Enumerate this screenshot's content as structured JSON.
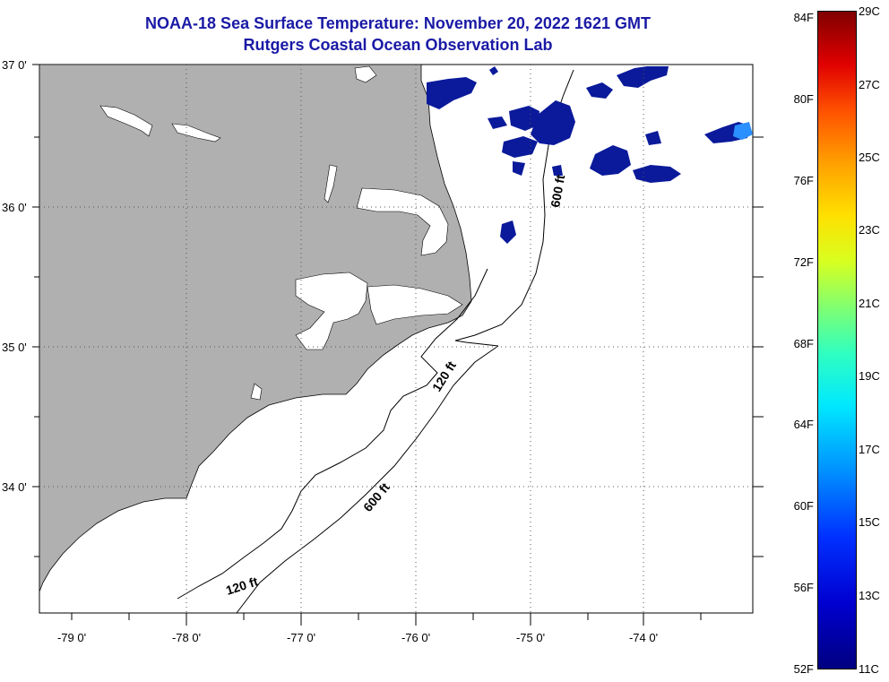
{
  "title": {
    "line1": "NOAA-18 Sea Surface Temperature:  November 20, 2022 1621 GMT",
    "line2": "Rutgers Coastal Ocean Observation Lab"
  },
  "map": {
    "lon_labels": [
      "-79 0'",
      "-78 0'",
      "-77 0'",
      "-76 0'",
      "-75 0'",
      "-74 0'"
    ],
    "lat_labels": [
      "37 0'",
      "36 0'",
      "35 0'",
      "34 0'"
    ],
    "contour_labels": [
      "600 ft",
      "120 ft",
      "600 ft",
      "120 ft"
    ],
    "land_color": "#b0b0b0",
    "sst_color": "#0a1a9a"
  },
  "colorbar": {
    "fahrenheit": [
      "84F",
      "80F",
      "76F",
      "72F",
      "68F",
      "64F",
      "60F",
      "56F",
      "52F"
    ],
    "celsius": [
      "29C",
      "27C",
      "25C",
      "23C",
      "21C",
      "19C",
      "17C",
      "15C",
      "13C",
      "11C"
    ]
  }
}
